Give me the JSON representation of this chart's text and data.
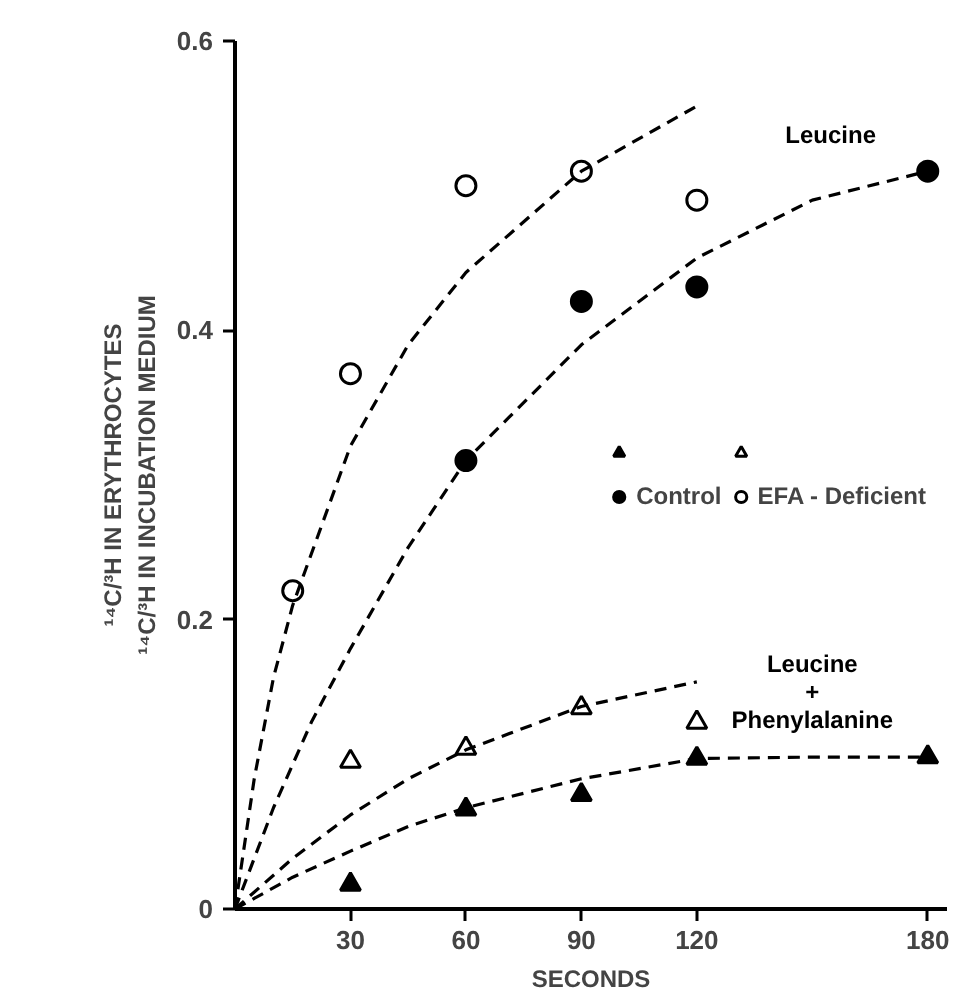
{
  "chart_data": {
    "type": "scatter",
    "xlabel": "SECONDS",
    "ylabel": "¹⁴C/³H IN ERYTHROCYTES\n¹⁴C/³H IN INCUBATION MEDIUM",
    "xlim": [
      0,
      185
    ],
    "ylim": [
      0,
      0.6
    ],
    "xticks": [
      30,
      60,
      90,
      120,
      180
    ],
    "yticks": [
      {
        "value": 0,
        "label": "0"
      },
      0.2,
      0.4,
      0.6
    ],
    "grid": false,
    "legend": "right",
    "annotations": [
      "Leucine",
      "Leucine\n+\nPhenylalanine"
    ],
    "series": [
      {
        "name": "Control",
        "marker": "circle",
        "color": "#000000",
        "x": [
          60,
          90,
          120,
          180
        ],
        "values": [
          0.31,
          0.42,
          0.43,
          0.51
        ]
      },
      {
        "name": "EFA - Deficient",
        "marker": "circle",
        "color": "#ffffff",
        "x": [
          15,
          30,
          60,
          90,
          120
        ],
        "values": [
          0.22,
          0.37,
          0.5,
          0.51,
          0.49
        ]
      },
      {
        "marker": "triangle",
        "color": "#000000",
        "x": [
          30,
          60,
          90,
          120,
          180
        ],
        "values": [
          0.017,
          0.069,
          0.079,
          0.104,
          0.105
        ]
      },
      {
        "marker": "triangle",
        "color": "#ffffff",
        "x": [
          30,
          60,
          90,
          120
        ],
        "values": [
          0.102,
          0.111,
          0.139,
          0.129
        ]
      },
      {
        "type": "line",
        "line_style": "dashed",
        "color": "#000000",
        "x": [
          0,
          5,
          10,
          15,
          30,
          45,
          60,
          90,
          120
        ],
        "values": [
          0,
          0.09,
          0.16,
          0.21,
          0.32,
          0.39,
          0.44,
          0.51,
          0.555
        ]
      },
      {
        "type": "line",
        "line_style": "dashed",
        "color": "#000000",
        "x": [
          0,
          10,
          20,
          30,
          45,
          60,
          90,
          120,
          150,
          180
        ],
        "values": [
          0,
          0.07,
          0.13,
          0.18,
          0.25,
          0.31,
          0.39,
          0.45,
          0.49,
          0.51
        ]
      },
      {
        "type": "line",
        "line_style": "dashed",
        "color": "#000000",
        "x": [
          0,
          15,
          30,
          45,
          60,
          90,
          120
        ],
        "values": [
          0,
          0.035,
          0.065,
          0.09,
          0.11,
          0.14,
          0.157
        ]
      },
      {
        "type": "line",
        "line_style": "dashed",
        "color": "#000000",
        "x": [
          0,
          15,
          30,
          45,
          60,
          90,
          120,
          150,
          180
        ],
        "values": [
          0,
          0.022,
          0.04,
          0.057,
          0.07,
          0.09,
          0.104,
          0.105,
          0.105
        ]
      }
    ]
  }
}
